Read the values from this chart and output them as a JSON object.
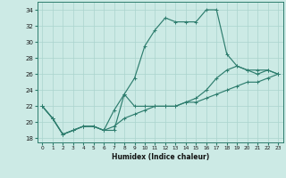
{
  "title": "",
  "xlabel": "Humidex (Indice chaleur)",
  "xlim": [
    -0.5,
    23.5
  ],
  "ylim": [
    17.5,
    35.0
  ],
  "yticks": [
    18,
    20,
    22,
    24,
    26,
    28,
    30,
    32,
    34
  ],
  "xticks": [
    0,
    1,
    2,
    3,
    4,
    5,
    6,
    7,
    8,
    9,
    10,
    11,
    12,
    13,
    14,
    15,
    16,
    17,
    18,
    19,
    20,
    21,
    22,
    23
  ],
  "bg_color": "#cceae5",
  "grid_color": "#aad4ce",
  "line_color": "#2e7d6e",
  "line1_y": [
    22,
    20.5,
    18.5,
    19,
    19.5,
    19.5,
    19,
    19,
    23.5,
    25.5,
    29.5,
    31.5,
    33,
    32.5,
    32.5,
    32.5,
    34,
    34,
    28.5,
    27,
    26.5,
    26,
    26.5,
    26
  ],
  "line2_y": [
    22,
    20.5,
    18.5,
    19,
    19.5,
    19.5,
    19,
    21.5,
    23.5,
    22,
    22,
    22,
    22,
    22,
    22.5,
    23,
    24,
    25.5,
    26.5,
    27,
    26.5,
    26.5,
    26.5,
    26
  ],
  "line3_y": [
    22,
    20.5,
    18.5,
    19,
    19.5,
    19.5,
    19,
    19.5,
    20.5,
    21,
    21.5,
    22,
    22,
    22,
    22.5,
    22.5,
    23,
    23.5,
    24,
    24.5,
    25,
    25,
    25.5,
    26
  ]
}
